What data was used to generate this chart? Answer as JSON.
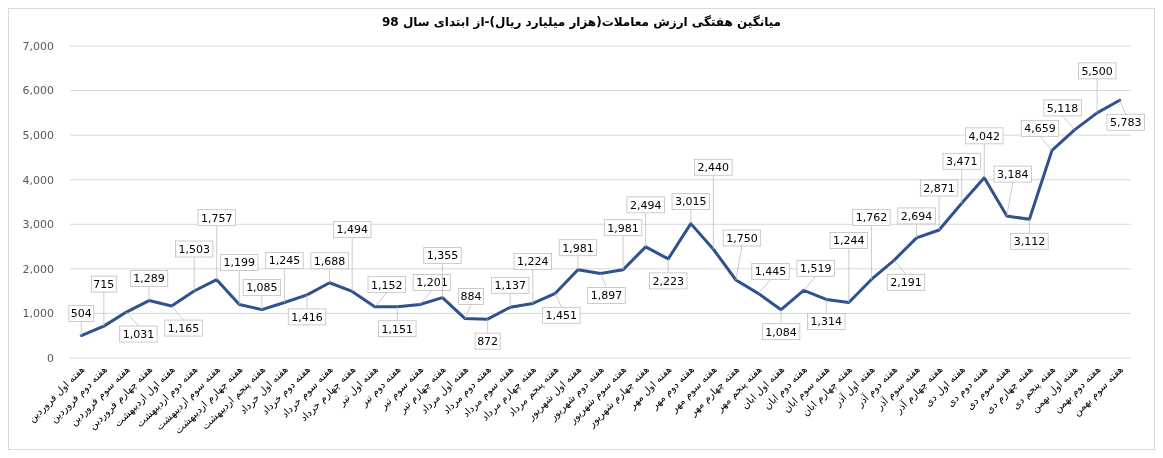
{
  "chart_data": {
    "type": "line",
    "title": "میانگین هفتگی ارزش معاملات(هزار میلیارد ریال)-از ابتدای سال 98",
    "categories": [
      "هفته اول فروردین",
      "هفته دوم فروردین",
      "هفته سوم فروردین",
      "هفته چهارم فروردین",
      "هفته اول اردیبهشت",
      "هفته دوم اردیبهشت",
      "هفته سوم اردیبهشت",
      "هفته چهارم اردیبهشت",
      "هفته پنجم اردیبهشت",
      "هفته اول خرداد",
      "هفته دوم خرداد",
      "هفته سوم خرداد",
      "هفته چهارم خرداد",
      "هفته اول تیر",
      "هفته دوم تیر",
      "هفته سوم تیر",
      "هفته چهارم تیر",
      "هفته اول مرداد",
      "هفته دوم مرداد",
      "هفته سوم مرداد",
      "هفته چهارم مرداد",
      "هفته پنجم مرداد",
      "هفته اول شهریور",
      "هفته دوم شهریور",
      "هفته سوم شهریور",
      "هفته چهارم شهریور",
      "هفته اول مهر",
      "هفته دوم مهر",
      "هفته سوم مهر",
      "هفته چهارم مهر",
      "هفته پنجم مهر",
      "هفته اول ابان",
      "هفته دوم ابان",
      "هفته سوم ابان",
      "هفته چهارم ابان",
      "هفته اول آذر",
      "هفته دوم آذر",
      "هفته سوم آذر",
      "هفته چهارم آذر",
      "هفته اول دی",
      "هفته دوم دی",
      "هفته سوم دی",
      "هفته چهارم دی",
      "هفته پنجم دی",
      "هفته اول بهمن",
      "هفته دوم بهمن",
      "هفته سوم بهمن"
    ],
    "series": [
      {
        "color": "#2f528f",
        "values": [
          504,
          715,
          1031,
          1289,
          1165,
          1503,
          1757,
          1199,
          1085,
          1245,
          1416,
          1688,
          1494,
          1152,
          1151,
          1201,
          1355,
          884,
          872,
          1137,
          1224,
          1451,
          1981,
          1897,
          1981,
          2494,
          2223,
          3015,
          2440,
          1750,
          1445,
          1084,
          1519,
          1314,
          1244,
          1762,
          2191,
          2694,
          2871,
          3471,
          4042,
          3184,
          3112,
          4659,
          5118,
          5500,
          5783
        ],
        "value_labels": [
          "504",
          "715",
          "1,031",
          "1,289",
          "1,165",
          "1,503",
          "1,757",
          "1,199",
          "1,085",
          "1,245",
          "1,416",
          "1,688",
          "1,494",
          "1,152",
          "1,151",
          "1,201",
          "1,355",
          "884",
          "872",
          "1,137",
          "1,224",
          "1,451",
          "1,981",
          "1,897",
          "1,981",
          "2,494",
          "2,223",
          "3,015",
          "2,440",
          "1,750",
          "1,445",
          "1,084",
          "1,519",
          "1,314",
          "1,244",
          "1,762",
          "2,191",
          "2,694",
          "2,871",
          "3,471",
          "4,042",
          "3,184",
          "3,112",
          "4,659",
          "5,118",
          "5,500",
          "5,783"
        ]
      }
    ],
    "ylim": [
      0,
      7000
    ],
    "yticks": [
      {
        "value": 0,
        "label": "0"
      },
      {
        "value": 1000,
        "label": "1,000"
      },
      {
        "value": 2000,
        "label": "2,000"
      },
      {
        "value": 3000,
        "label": "3,000"
      },
      {
        "value": 4000,
        "label": "4,000"
      },
      {
        "value": 5000,
        "label": "5,000"
      },
      {
        "value": 6000,
        "label": "6,000"
      },
      {
        "value": 7000,
        "label": "7,000"
      }
    ],
    "grid": "y",
    "marker": "none",
    "line_style": "solid"
  }
}
